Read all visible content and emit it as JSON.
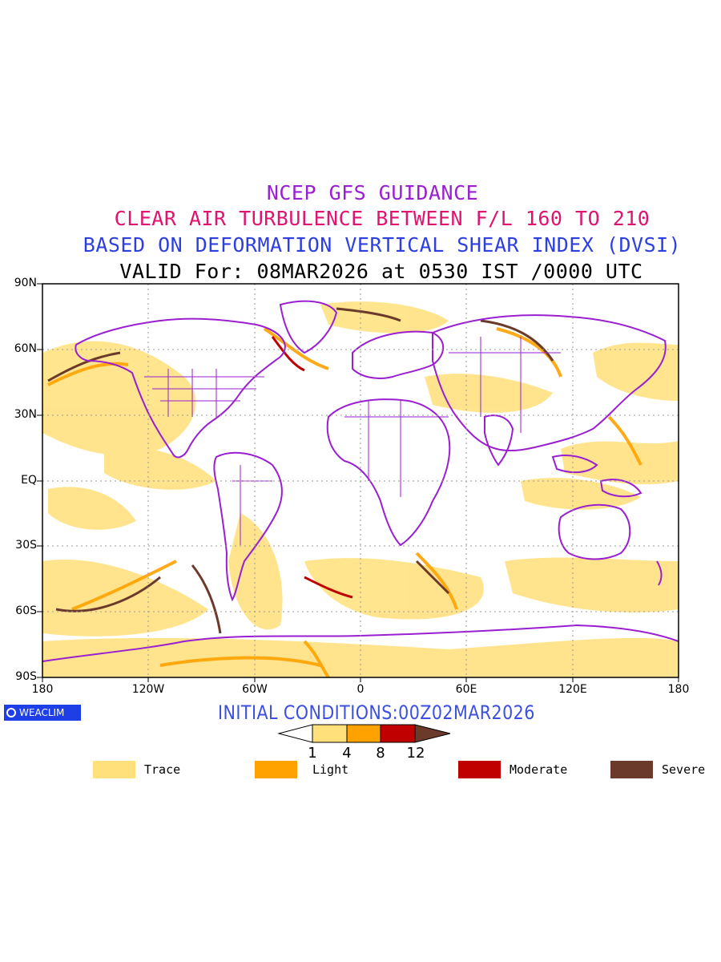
{
  "titles": {
    "line1": "NCEP GFS GUIDANCE",
    "line2": "CLEAR AIR TURBULENCE BETWEEN F/L 160 TO 210",
    "line3": "BASED ON DEFORMATION VERTICAL SHEAR INDEX (DVSI)",
    "line4": "VALID For: 08MAR2026 at 0530 IST /0000 UTC"
  },
  "axes": {
    "lat_labels": [
      "90N",
      "60N",
      "30N",
      "EQ",
      "30S",
      "60S",
      "90S"
    ],
    "lon_labels": [
      "180",
      "120W",
      "60W",
      "0",
      "60E",
      "120E",
      "180"
    ]
  },
  "logo": {
    "text": "WEACLIM"
  },
  "initial_conditions": "INITIAL CONDITIONS:00Z02MAR2026",
  "colorbar": {
    "ticks": [
      "1",
      "4",
      "8",
      "12"
    ],
    "colors": [
      "#ffffff",
      "#ffe07a",
      "#ffa200",
      "#c00000",
      "#6b3a2a"
    ]
  },
  "legend": [
    {
      "label": "Trace",
      "color": "#ffe07a"
    },
    {
      "label": "Light",
      "color": "#ffa200"
    },
    {
      "label": "Moderate",
      "color": "#c00000"
    },
    {
      "label": "Severe",
      "color": "#6b3a2a"
    }
  ],
  "colors": {
    "coastline": "#9a1fd0",
    "borders": "#9a1fd0",
    "grid": "#9a9a9a"
  }
}
